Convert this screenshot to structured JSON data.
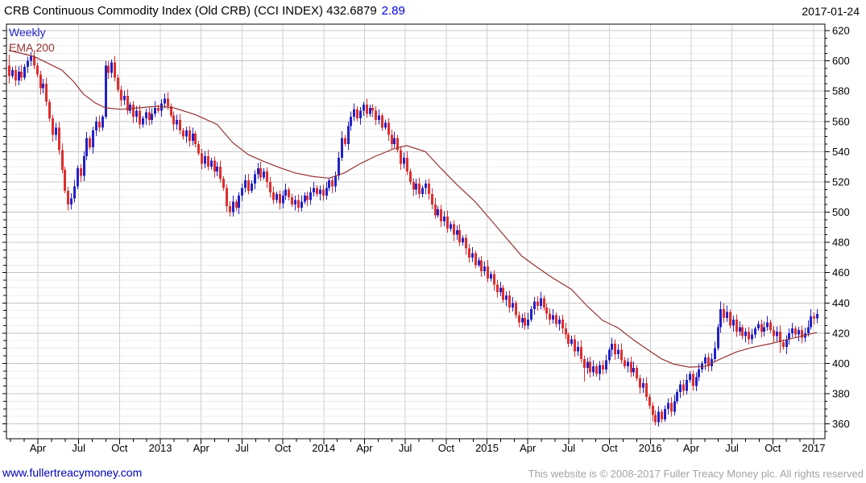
{
  "header": {
    "title": "CRB Continuous Commodity Index (Old CRB) (CCI INDEX) 432.6879",
    "change": "2.89",
    "date": "2017-01-24"
  },
  "legend": {
    "timeframe": "Weekly",
    "overlay": "EMA 200"
  },
  "footer": {
    "link": "www.fullertreacymoney.com",
    "copyright": "This website is © 2008-2017 Fuller Treacy Money plc. All rights reserved"
  },
  "chart_data": {
    "type": "candlestick",
    "title": "CRB Continuous Commodity Index (Old CRB) (CCI INDEX)",
    "frequency": "Weekly",
    "last_close": 432.6879,
    "change": 2.89,
    "date": "2017-01-24",
    "x_span": "Jan 2012 to Jan 2017, one candle per week",
    "ylim": [
      350,
      624
    ],
    "grid": {
      "h_minor_step": 5,
      "h_major_step": 20,
      "v_lines": "quarterly"
    },
    "y_ticks": [
      360,
      380,
      400,
      420,
      440,
      460,
      480,
      500,
      520,
      540,
      560,
      580,
      600,
      620
    ],
    "x_tick_labels": [
      "Apr",
      "Jul",
      "Oct",
      "2013",
      "Apr",
      "Jul",
      "Oct",
      "2014",
      "Apr",
      "Jul",
      "Oct",
      "2015",
      "Apr",
      "Jul",
      "Oct",
      "2016",
      "Apr",
      "Jul",
      "Oct",
      "2017"
    ],
    "first_open": 597,
    "open_rule": "each weekly open equals previous weekly close",
    "closes": [
      590,
      594,
      587,
      593,
      589,
      596,
      600,
      603,
      597,
      591,
      582,
      585,
      573,
      562,
      551,
      556,
      541,
      528,
      514,
      505,
      509,
      517,
      529,
      524,
      537,
      549,
      543,
      554,
      560,
      556,
      563,
      597,
      592,
      599,
      589,
      581,
      574,
      577,
      567,
      571,
      563,
      567,
      558,
      562,
      566,
      561,
      565,
      569,
      567,
      572,
      575,
      570,
      564,
      558,
      561,
      554,
      550,
      554,
      547,
      552,
      545,
      539,
      532,
      537,
      530,
      534,
      527,
      530,
      522,
      516,
      504,
      500,
      507,
      503,
      511,
      516,
      521,
      514,
      519,
      525,
      529,
      523,
      527,
      520,
      513,
      508,
      512,
      506,
      511,
      515,
      510,
      505,
      508,
      503,
      507,
      511,
      508,
      513,
      516,
      512,
      515,
      511,
      516,
      521,
      517,
      524,
      536,
      549,
      545,
      557,
      563,
      568,
      562,
      567,
      571,
      565,
      569,
      567,
      561,
      564,
      556,
      559,
      551,
      545,
      549,
      541,
      532,
      536,
      527,
      520,
      515,
      519,
      512,
      516,
      519,
      512,
      505,
      498,
      502,
      494,
      497,
      489,
      492,
      485,
      488,
      480,
      483,
      476,
      470,
      473,
      465,
      468,
      461,
      464,
      456,
      459,
      452,
      447,
      450,
      442,
      445,
      437,
      440,
      432,
      427,
      430,
      425,
      429,
      436,
      441,
      438,
      443,
      437,
      433,
      429,
      432,
      426,
      429,
      423,
      419,
      413,
      416,
      408,
      411,
      403,
      397,
      401,
      394,
      398,
      393,
      399,
      396,
      402,
      409,
      413,
      406,
      409,
      402,
      398,
      401,
      394,
      397,
      390,
      384,
      387,
      378,
      372,
      366,
      361,
      368,
      363,
      370,
      374,
      368,
      375,
      381,
      386,
      382,
      389,
      393,
      385,
      391,
      396,
      400,
      404,
      398,
      403,
      410,
      424,
      436,
      430,
      434,
      425,
      429,
      421,
      424,
      418,
      421,
      416,
      419,
      423,
      426,
      421,
      424,
      427,
      422,
      418,
      421,
      414,
      411,
      416,
      420,
      423,
      419,
      422,
      417,
      420,
      424,
      431,
      429.8,
      432.69
    ],
    "wick_overrides": {
      "0": [
        604,
        585
      ],
      "7": [
        606,
        null
      ],
      "19": [
        null,
        501
      ],
      "31": [
        600,
        null
      ],
      "33": [
        601,
        null
      ],
      "70": [
        null,
        500
      ],
      "71": [
        null,
        497
      ],
      "111": [
        572,
        null
      ],
      "114": [
        573,
        null
      ],
      "116": [
        571,
        null
      ],
      "164": [
        null,
        424
      ],
      "185": [
        null,
        388
      ],
      "194": [
        417,
        null
      ],
      "208": [
        null,
        359
      ],
      "220": [
        null,
        382
      ],
      "229": [
        441,
        null
      ],
      "248": [
        null,
        407
      ],
      "250": [
        null,
        406
      ],
      "258": [
        436,
        null
      ],
      "260": [
        436,
        null
      ]
    },
    "ema200_anchors": [
      [
        0,
        607
      ],
      [
        8,
        603
      ],
      [
        17,
        594
      ],
      [
        21,
        586
      ],
      [
        24,
        578
      ],
      [
        28,
        572
      ],
      [
        31,
        569
      ],
      [
        36,
        568
      ],
      [
        42,
        569
      ],
      [
        48,
        570
      ],
      [
        53,
        569
      ],
      [
        60,
        564.5
      ],
      [
        67,
        558
      ],
      [
        72,
        546
      ],
      [
        77,
        538
      ],
      [
        82,
        533.5
      ],
      [
        87,
        529.5
      ],
      [
        92,
        526
      ],
      [
        98,
        523.5
      ],
      [
        103,
        522.5
      ],
      [
        108,
        526
      ],
      [
        113,
        532
      ],
      [
        118,
        537
      ],
      [
        124,
        542
      ],
      [
        128,
        544
      ],
      [
        134,
        540
      ],
      [
        139,
        529
      ],
      [
        144,
        518.5
      ],
      [
        150,
        507
      ],
      [
        155,
        495
      ],
      [
        160,
        483
      ],
      [
        165,
        471
      ],
      [
        170,
        463.5
      ],
      [
        175,
        456.5
      ],
      [
        181,
        449
      ],
      [
        186,
        438
      ],
      [
        191,
        428.5
      ],
      [
        196,
        423.5
      ],
      [
        201,
        415.5
      ],
      [
        206,
        408.5
      ],
      [
        210,
        403
      ],
      [
        214,
        399.5
      ],
      [
        219,
        397.5
      ],
      [
        224,
        398
      ],
      [
        229,
        403
      ],
      [
        234,
        407.5
      ],
      [
        239,
        410.5
      ],
      [
        245,
        413
      ],
      [
        250,
        415.5
      ],
      [
        255,
        418
      ],
      [
        260,
        420.5
      ]
    ],
    "colors": {
      "up": "#2222c8",
      "down": "#e02d2d",
      "ema": "#993333",
      "grid_minor": "#ececec",
      "grid_major": "#c4c4c4",
      "grid_vert": "#d0d0d0",
      "axis": "#000000"
    }
  }
}
